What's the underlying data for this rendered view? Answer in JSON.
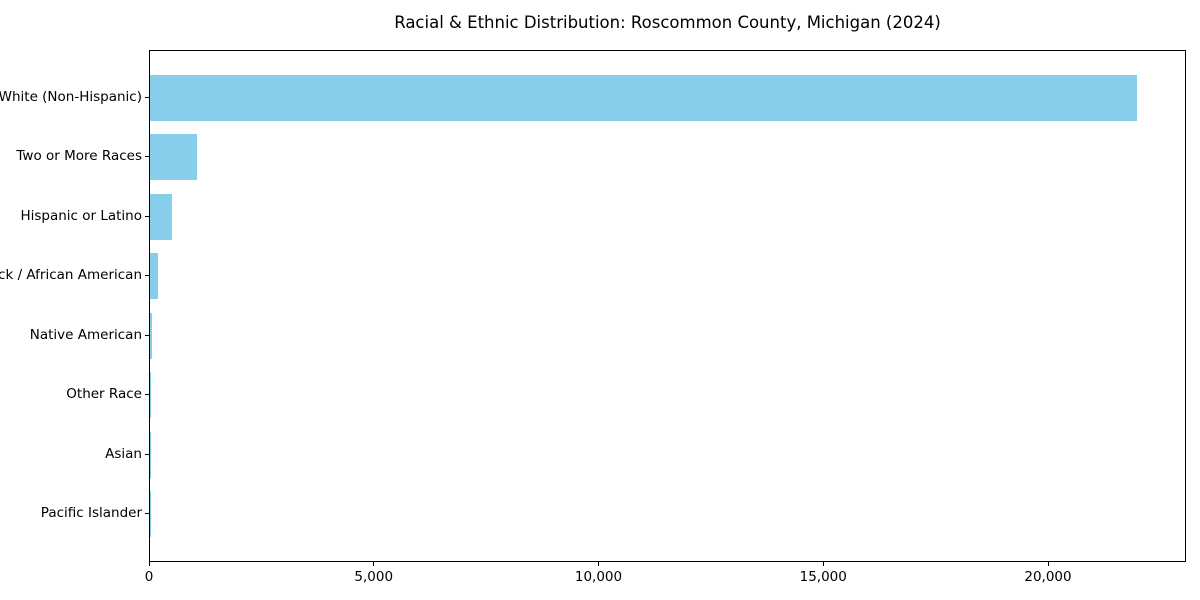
{
  "chart_data": {
    "type": "bar",
    "orientation": "horizontal",
    "title": "Racial & Ethnic Distribution: Roscommon County, Michigan (2024)",
    "categories": [
      "White (Non-Hispanic)",
      "Two or More Races",
      "Hispanic or Latino",
      "Black / African American",
      "Native American",
      "Other Race",
      "Asian",
      "Pacific Islander"
    ],
    "values": [
      21950,
      1050,
      480,
      170,
      50,
      20,
      15,
      5
    ],
    "xlabel": "",
    "ylabel": "",
    "xlim": [
      0,
      23070
    ],
    "xticks": [
      0,
      5000,
      10000,
      15000,
      20000
    ],
    "xtick_labels": [
      "0",
      "5,000",
      "10,000",
      "15,000",
      "20,000"
    ],
    "bar_color": "#87CEEB",
    "axis_color": "#000000",
    "text_color": "#000000",
    "grid": false,
    "legend": null
  }
}
